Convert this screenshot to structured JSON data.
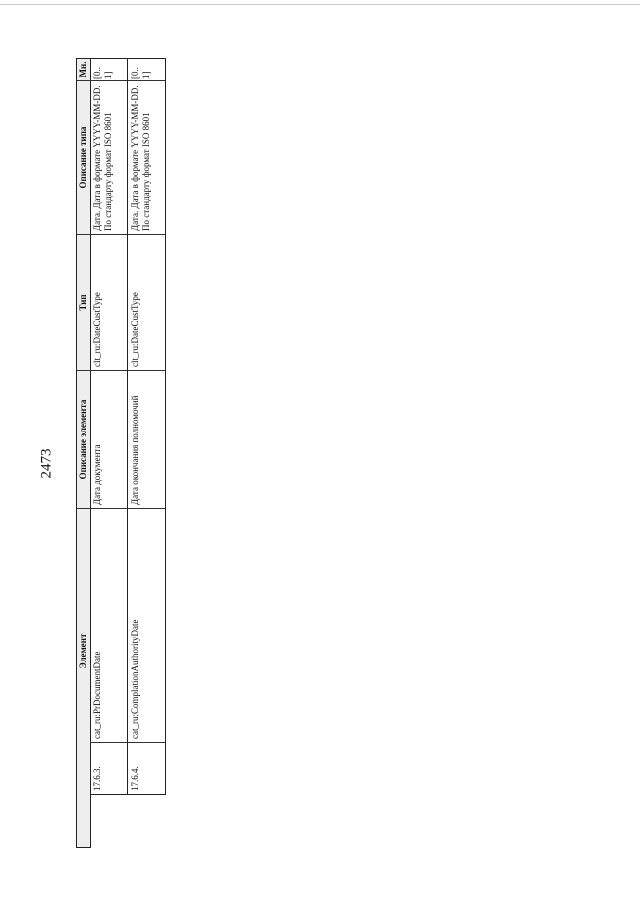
{
  "page_number": "2473",
  "table": {
    "headers": [
      "Элемент",
      "Описание элемента",
      "Тип",
      "Описание типа",
      "Мн."
    ],
    "rows": [
      {
        "num": "17.6.3.",
        "element": "cat_ru:PrDocumentDate",
        "description": "Дата документа",
        "type": "clt_ru:DateCustType",
        "type_description": "Дата. Дата в формате YYYY-MM-DD. По стандарту формат ISO 8601",
        "mult": "[0..1]"
      },
      {
        "num": "17.6.4.",
        "element": "cat_ru:ComplationAuthorityDate",
        "description": "Дата окончания полномочий",
        "type": "clt_ru:DateCustType",
        "type_description": "Дата. Дата в формате YYYY-MM-DD. По стандарту формат ISO 8601",
        "mult": "[0..1]"
      }
    ]
  }
}
